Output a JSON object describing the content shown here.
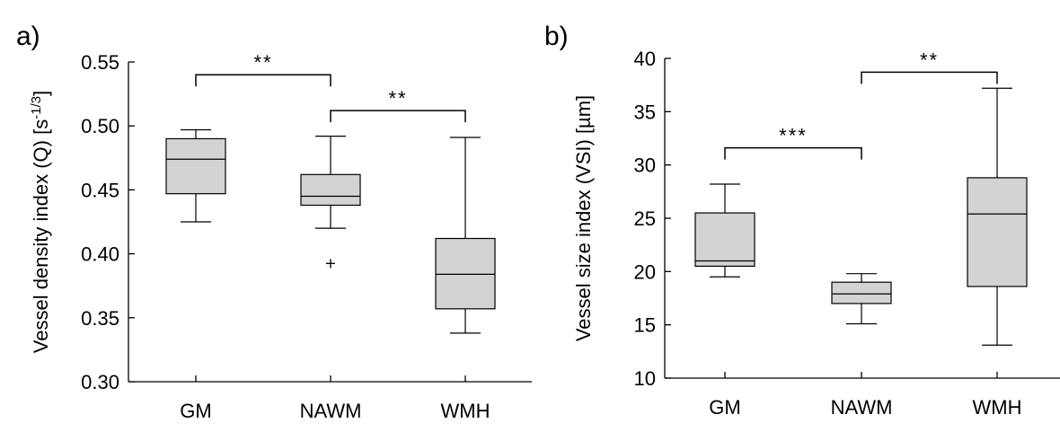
{
  "chart_data": [
    {
      "type": "box",
      "panel_label": "a)",
      "ylabel": "Vessel density index (Q) [s",
      "ylabel_unit_sup": "-1/3",
      "ylabel_close": "]",
      "ylim": [
        0.3,
        0.55
      ],
      "yticks": [
        0.3,
        0.35,
        0.4,
        0.45,
        0.5,
        0.55
      ],
      "ytick_labels": [
        "0.30",
        "0.35",
        "0.40",
        "0.45",
        "0.50",
        "0.55"
      ],
      "categories": [
        "GM",
        "NAWM",
        "WMH"
      ],
      "boxes": [
        {
          "whisker_low": 0.425,
          "q1": 0.447,
          "median": 0.474,
          "q3": 0.49,
          "whisker_high": 0.497,
          "outliers": []
        },
        {
          "whisker_low": 0.42,
          "q1": 0.438,
          "median": 0.445,
          "q3": 0.462,
          "whisker_high": 0.492,
          "outliers": [
            0.393
          ]
        },
        {
          "whisker_low": 0.338,
          "q1": 0.357,
          "median": 0.384,
          "q3": 0.412,
          "whisker_high": 0.491,
          "outliers": []
        }
      ],
      "significance": [
        {
          "from": 0,
          "to": 1,
          "y": 0.54,
          "label": "**"
        },
        {
          "from": 1,
          "to": 2,
          "y": 0.512,
          "label": "**"
        }
      ]
    },
    {
      "type": "box",
      "panel_label": "b)",
      "ylabel": "Vessel size index (VSI) [µm]",
      "ylim": [
        10,
        40
      ],
      "yticks": [
        10,
        15,
        20,
        25,
        30,
        35,
        40
      ],
      "ytick_labels": [
        "10",
        "15",
        "20",
        "25",
        "30",
        "35",
        "40"
      ],
      "categories": [
        "GM",
        "NAWM",
        "WMH"
      ],
      "boxes": [
        {
          "whisker_low": 19.5,
          "q1": 20.5,
          "median": 21.0,
          "q3": 25.5,
          "whisker_high": 28.2,
          "outliers": []
        },
        {
          "whisker_low": 15.1,
          "q1": 17.0,
          "median": 17.9,
          "q3": 19.0,
          "whisker_high": 19.8,
          "outliers": []
        },
        {
          "whisker_low": 13.1,
          "q1": 18.6,
          "median": 25.4,
          "q3": 28.8,
          "whisker_high": 37.2,
          "outliers": []
        }
      ],
      "significance": [
        {
          "from": 0,
          "to": 1,
          "y": 31.6,
          "label": "***"
        },
        {
          "from": 1,
          "to": 2,
          "y": 38.7,
          "label": "**"
        }
      ]
    }
  ]
}
